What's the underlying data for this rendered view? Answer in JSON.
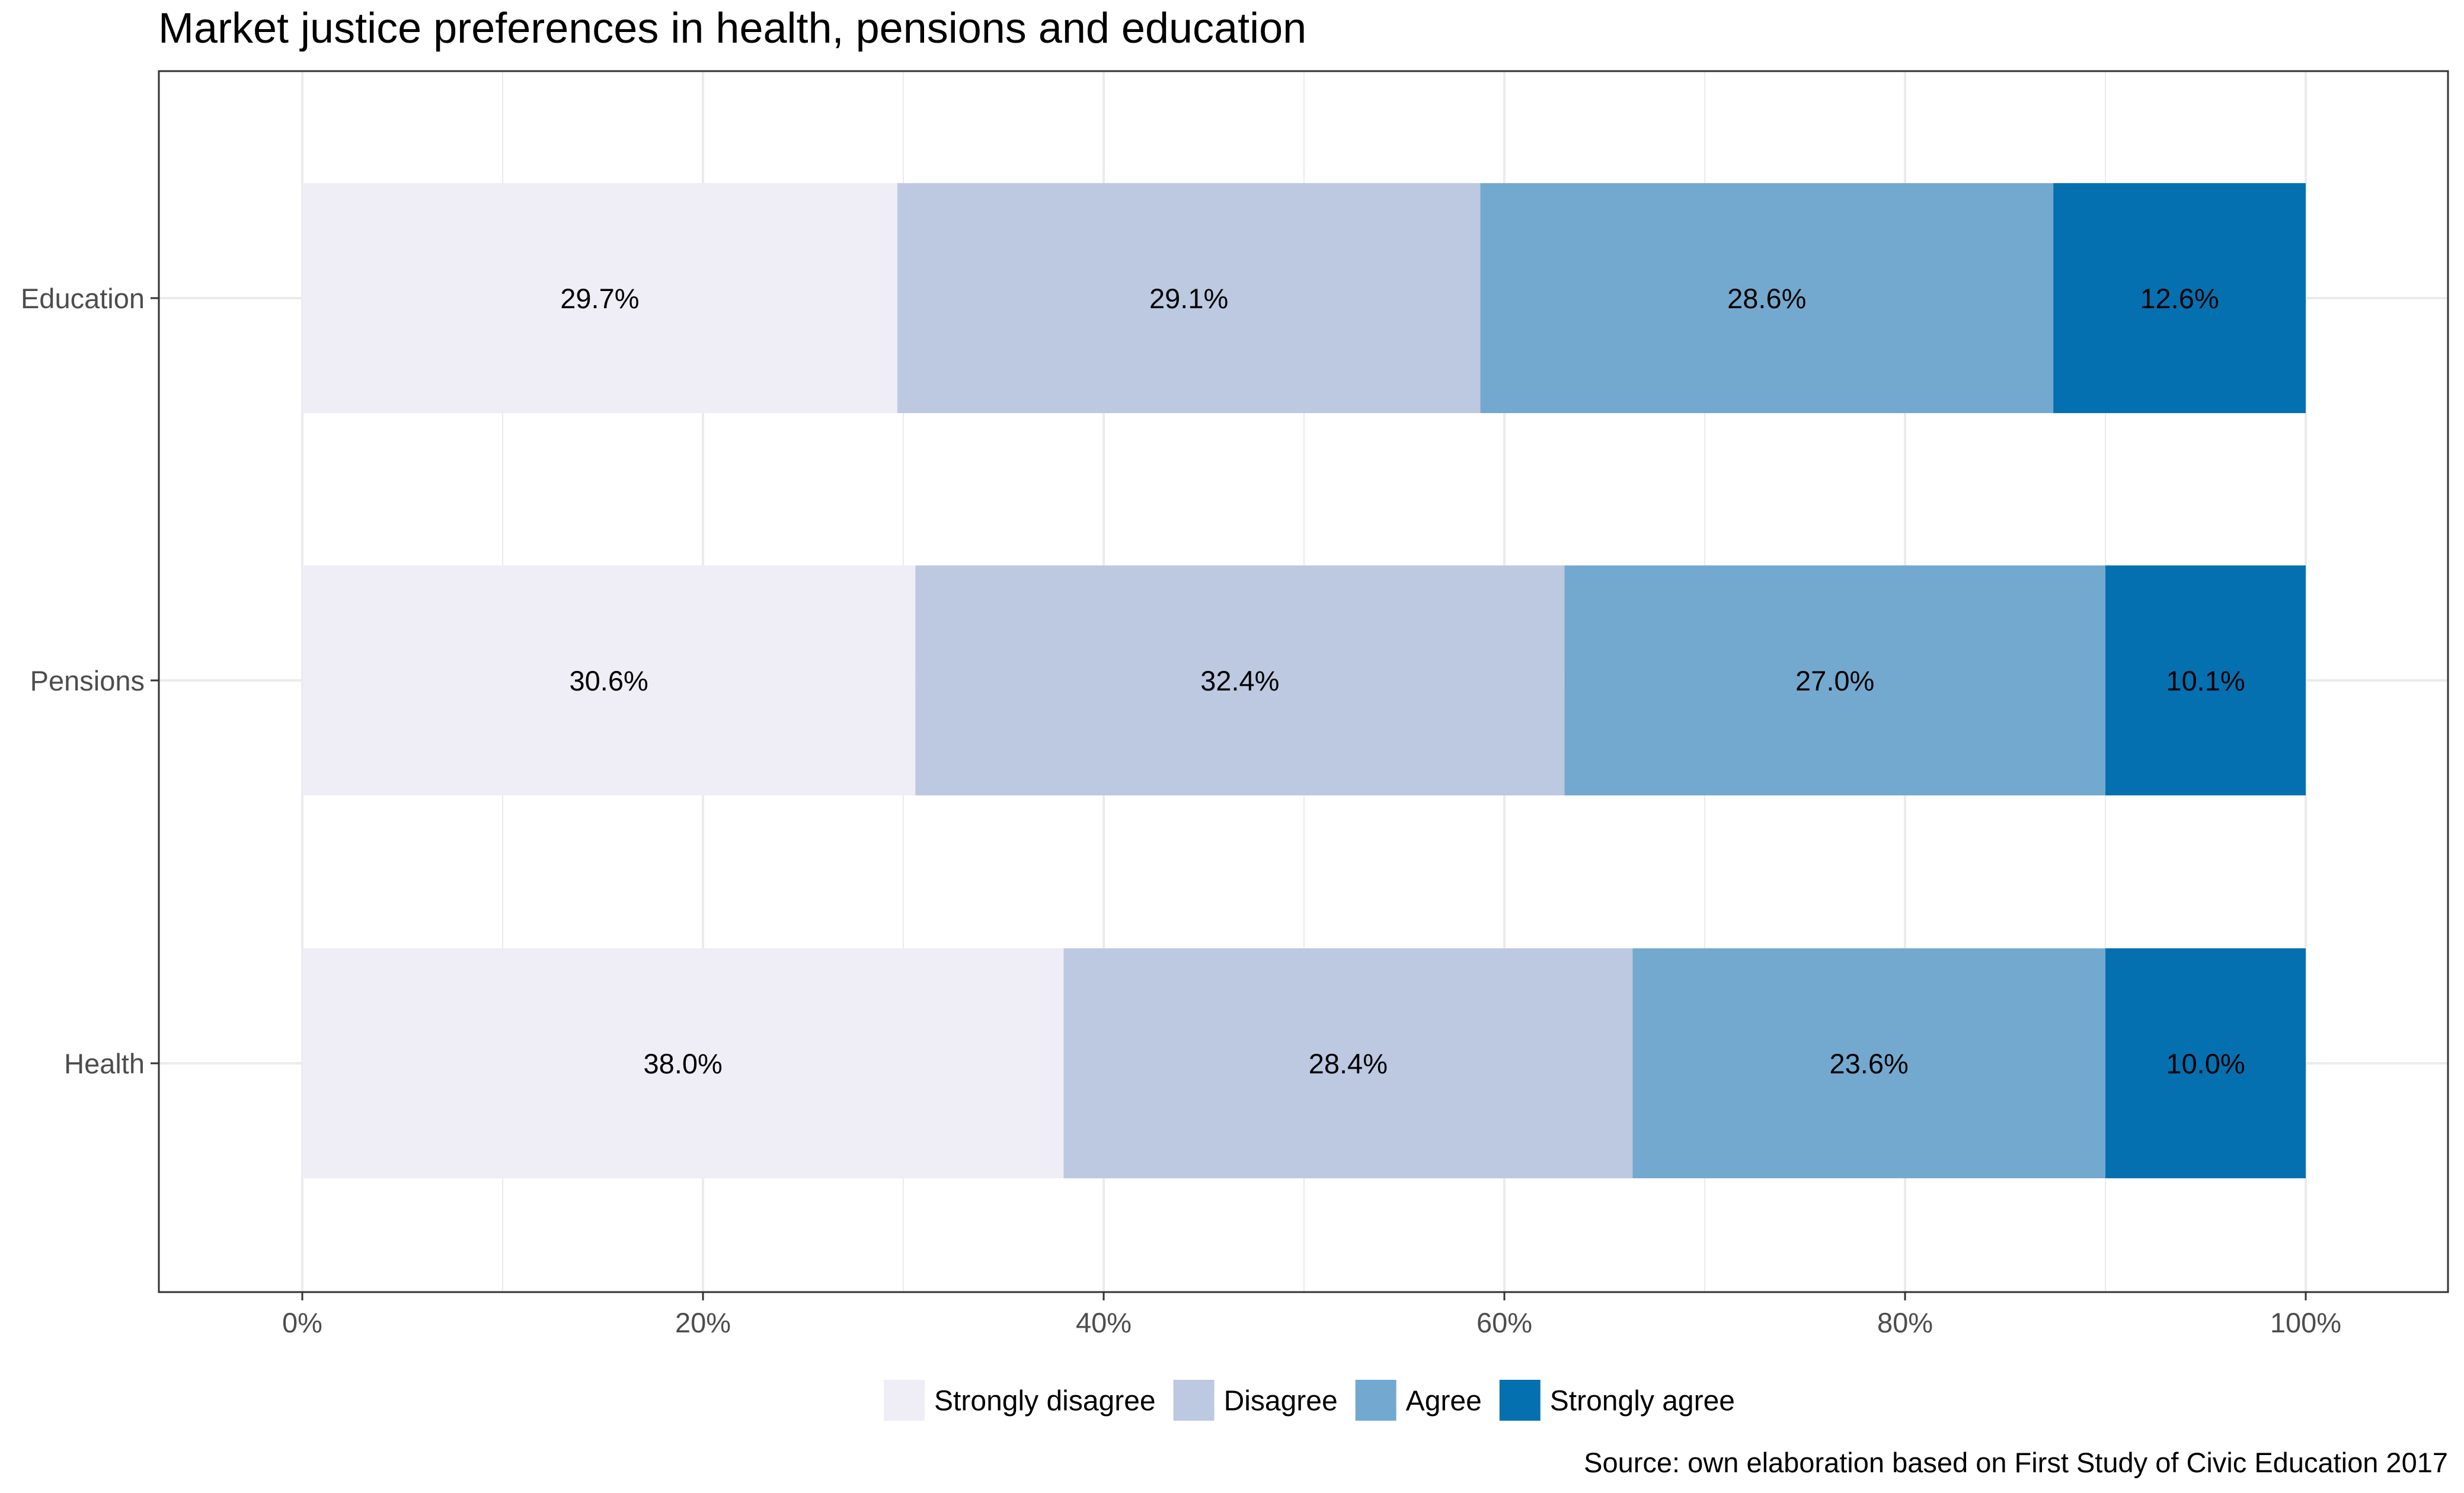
{
  "chart_data": {
    "type": "bar",
    "orientation": "horizontal",
    "stacked": true,
    "title": "Market justice preferences in health, pensions and education",
    "caption": "Source: own elaboration based on First Study of Civic Education 2017",
    "xlabel": "",
    "ylabel": "",
    "xlim": [
      0,
      1
    ],
    "x_ticks": [
      0,
      0.2,
      0.4,
      0.6,
      0.8,
      1.0
    ],
    "x_tick_labels": [
      "0%",
      "20%",
      "40%",
      "60%",
      "80%",
      "100%"
    ],
    "categories": [
      "Education",
      "Pensions",
      "Health"
    ],
    "series": [
      {
        "name": "Strongly disagree",
        "color": "#efedf5",
        "values": [
          0.297,
          0.306,
          0.38
        ],
        "labels": [
          "29.7%",
          "30.6%",
          "38.0%"
        ]
      },
      {
        "name": "Disagree",
        "color": "#bdc9e1",
        "values": [
          0.291,
          0.324,
          0.284
        ],
        "labels": [
          "29.1%",
          "32.4%",
          "28.4%"
        ]
      },
      {
        "name": "Agree",
        "color": "#74a9cf",
        "values": [
          0.286,
          0.27,
          0.236
        ],
        "labels": [
          "28.6%",
          "27.0%",
          "23.6%"
        ]
      },
      {
        "name": "Strongly agree",
        "color": "#0570b0",
        "values": [
          0.126,
          0.101,
          0.1
        ],
        "labels": [
          "12.6%",
          "10.1%",
          "10.0%"
        ]
      }
    ],
    "grid": true,
    "legend_position": "bottom",
    "panel_border_color": "#333333",
    "grid_color": "#ebebeb"
  }
}
